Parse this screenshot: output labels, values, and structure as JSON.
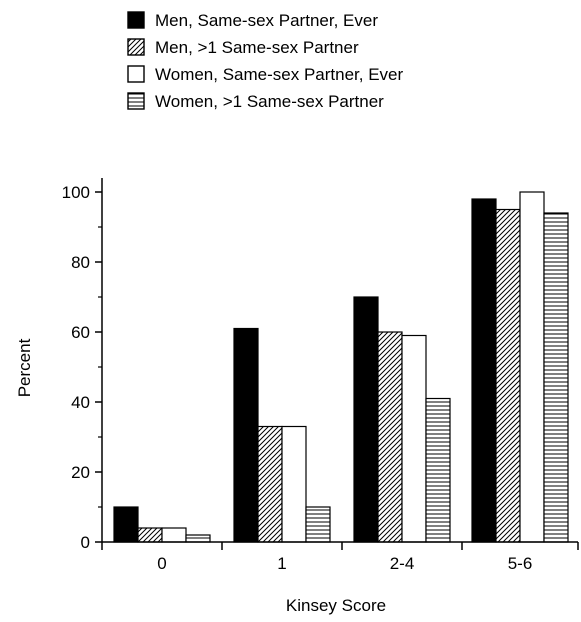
{
  "chart_data": {
    "type": "bar",
    "title": "",
    "xlabel": "Kinsey Score",
    "ylabel": "Percent",
    "categories": [
      "0",
      "1",
      "2-4",
      "5-6"
    ],
    "yticks": [
      "0",
      "20",
      "40",
      "60",
      "80",
      "100"
    ],
    "ylim": [
      0,
      100
    ],
    "grid": false,
    "legend_position": "top-left",
    "series": [
      {
        "name": "Men, Same-sex Partner, Ever",
        "pattern": "solid-black",
        "values": [
          10,
          61,
          70,
          98
        ]
      },
      {
        "name": "Men, >1 Same-sex Partner",
        "pattern": "diagonal-hatch",
        "values": [
          4,
          33,
          60,
          95
        ]
      },
      {
        "name": "Women, Same-sex Partner, Ever",
        "pattern": "white",
        "values": [
          4,
          33,
          59,
          100
        ]
      },
      {
        "name": "Women, >1 Same-sex Partner",
        "pattern": "horizontal-lines",
        "values": [
          2,
          10,
          41,
          94
        ]
      }
    ]
  }
}
